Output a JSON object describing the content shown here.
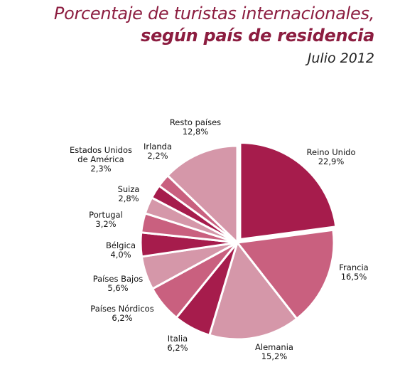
{
  "title": {
    "line1": "Porcentaje de turistas internacionales,",
    "line2": "según país de residencia",
    "subtitle": "Julio 2012"
  },
  "chart_data": {
    "type": "pie",
    "title": "Porcentaje de turistas internacionales, según país de residencia",
    "subtitle": "Julio 2012",
    "categories": [
      "Reino Unido",
      "Francia",
      "Alemania",
      "Italia",
      "Países Nórdicos",
      "Países Bajos",
      "Bélgica",
      "Portugal",
      "Suiza",
      "Estados Unidos de América",
      "Irlanda",
      "Resto países"
    ],
    "label_lines": [
      [
        "Reino Unido"
      ],
      [
        "Francia"
      ],
      [
        "Alemania"
      ],
      [
        "Italia"
      ],
      [
        "Países Nórdicos"
      ],
      [
        "Países Bajos"
      ],
      [
        "Bélgica"
      ],
      [
        "Portugal"
      ],
      [
        "Suiza"
      ],
      [
        "Estados Unidos",
        "de América"
      ],
      [
        "Irlanda"
      ],
      [
        "Resto países"
      ]
    ],
    "values": [
      22.9,
      16.5,
      15.2,
      6.2,
      6.2,
      5.6,
      4.0,
      3.2,
      2.8,
      2.3,
      2.2,
      12.8
    ],
    "value_labels": [
      "22,9%",
      "16,5%",
      "15,2%",
      "6,2%",
      "6,2%",
      "5,6%",
      "4,0%",
      "3,2%",
      "2,8%",
      "2,3%",
      "2,2%",
      "12,8%"
    ],
    "colors": [
      "#a61c4c",
      "#c9607f",
      "#d597a9",
      "#a61c4c",
      "#c9607f",
      "#d597a9",
      "#a61c4c",
      "#c9607f",
      "#d597a9",
      "#a61c4c",
      "#c9607f",
      "#d597a9"
    ],
    "start": "12 o'clock",
    "direction": "clockwise",
    "exploded_slice": "Reino Unido"
  }
}
